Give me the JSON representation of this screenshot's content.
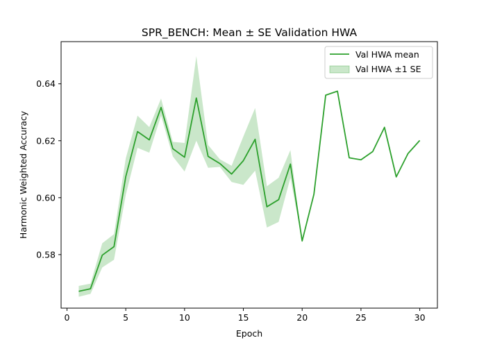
{
  "chart_data": {
    "type": "line",
    "title": "SPR_BENCH: Mean ± SE Validation HWA",
    "xlabel": "Epoch",
    "ylabel": "Harmonic Weighted Accuracy",
    "xlim": [
      -0.5,
      31.5
    ],
    "ylim": [
      0.5612,
      0.6548
    ],
    "xticks": [
      0,
      5,
      10,
      15,
      20,
      25,
      30
    ],
    "yticks": [
      0.58,
      0.6,
      0.62,
      0.64
    ],
    "ytick_labels": [
      "0.58",
      "0.60",
      "0.62",
      "0.64"
    ],
    "grid": false,
    "legend_position": "top-right",
    "color": "#2ca02c",
    "x": [
      1,
      2,
      3,
      4,
      5,
      6,
      7,
      8,
      9,
      10,
      11,
      12,
      13,
      14,
      15,
      16,
      17,
      18,
      19,
      20,
      21,
      22,
      23,
      24,
      25,
      26,
      27,
      28,
      29,
      30
    ],
    "series": [
      {
        "name": "Val HWA mean",
        "values": [
          0.5671,
          0.568,
          0.5798,
          0.5828,
          0.6074,
          0.6232,
          0.6203,
          0.6317,
          0.6172,
          0.6142,
          0.635,
          0.6145,
          0.612,
          0.6083,
          0.613,
          0.6205,
          0.5968,
          0.5993,
          0.6118,
          0.5848,
          0.6012,
          0.636,
          0.6374,
          0.614,
          0.6133,
          0.6162,
          0.6247,
          0.6073,
          0.6155,
          0.6201
        ]
      }
    ],
    "band": {
      "name": "Val HWA ±1 SE",
      "lower": [
        0.5652,
        0.5662,
        0.5755,
        0.5782,
        0.601,
        0.6175,
        0.6158,
        0.6288,
        0.6145,
        0.6092,
        0.62,
        0.6105,
        0.6108,
        0.6055,
        0.6045,
        0.6095,
        0.5895,
        0.5915,
        0.607,
        0.5848,
        0.6012,
        0.636,
        0.6374,
        0.614,
        0.6133,
        0.6162,
        0.6247,
        0.6073,
        0.6155,
        0.6201
      ],
      "upper": [
        0.569,
        0.5698,
        0.584,
        0.5872,
        0.6138,
        0.6288,
        0.6248,
        0.6348,
        0.6196,
        0.6192,
        0.6497,
        0.6185,
        0.6135,
        0.6112,
        0.6215,
        0.6315,
        0.604,
        0.607,
        0.6167,
        0.5848,
        0.6012,
        0.636,
        0.6374,
        0.614,
        0.6133,
        0.6162,
        0.6247,
        0.6073,
        0.6155,
        0.6201
      ]
    }
  }
}
